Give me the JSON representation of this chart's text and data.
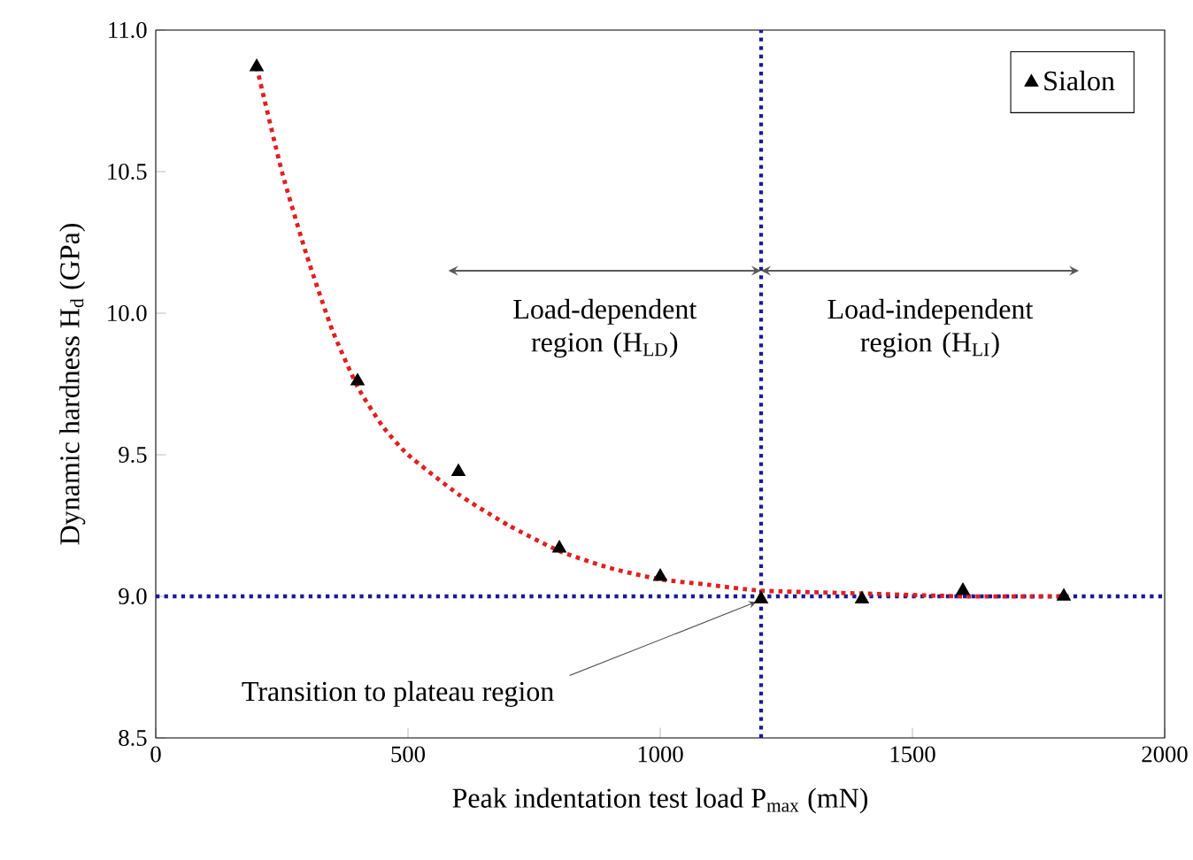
{
  "chart_data": {
    "type": "scatter",
    "xlabel": "Peak indentation test load  P$_{max}$ (mN)",
    "ylabel": "Dynamic hardness  H$_{d}$ (GPa)",
    "xlim": [
      0,
      2000
    ],
    "ylim": [
      8.5,
      11.0
    ],
    "xticks": [
      0,
      500,
      1000,
      1500,
      2000
    ],
    "yticks": [
      {
        "value": 8.5,
        "label": "8.5"
      },
      {
        "value": 9.0,
        "label": "9.0"
      },
      {
        "value": 9.5,
        "label": "9.5"
      },
      {
        "value": 10.0,
        "label": "10.0"
      },
      {
        "value": 10.5,
        "label": "10.5"
      },
      {
        "value": 11.0,
        "label": "11.0"
      }
    ],
    "series": [
      {
        "name": "Sialon",
        "color": "#000000",
        "marker": "triangle",
        "x": [
          200,
          400,
          600,
          800,
          1000,
          1200,
          1400,
          1600,
          1800
        ],
        "values": [
          10.87,
          9.76,
          9.44,
          9.17,
          9.07,
          8.99,
          8.99,
          9.02,
          9.0
        ]
      },
      {
        "type": "line",
        "color": "#e02020",
        "line_style": "dotted",
        "marker": "none",
        "x": [
          200,
          250,
          300,
          350,
          400,
          450,
          500,
          600,
          700,
          800,
          900,
          1000,
          1100,
          1200,
          1400,
          1600,
          1800
        ],
        "values": [
          10.87,
          10.5,
          10.2,
          9.94,
          9.74,
          9.6,
          9.5,
          9.36,
          9.25,
          9.16,
          9.1,
          9.06,
          9.04,
          9.02,
          9.01,
          9.0,
          9.0
        ]
      }
    ],
    "ref_lines": [
      {
        "axis": "y",
        "value": 9.0,
        "color": "#1a1a9a",
        "line_style": "dotted"
      },
      {
        "axis": "x",
        "value": 1200,
        "color": "#1a1a9a",
        "line_style": "dotted"
      }
    ],
    "annotations": [
      "Load-dependent region (H$_{LD}$)",
      "Load-independent region (H$_{LI}$)",
      {
        "text": "Transition to plateau region",
        "x": 1200,
        "y": 9.0
      }
    ],
    "legend": "top right",
    "grid": false
  }
}
